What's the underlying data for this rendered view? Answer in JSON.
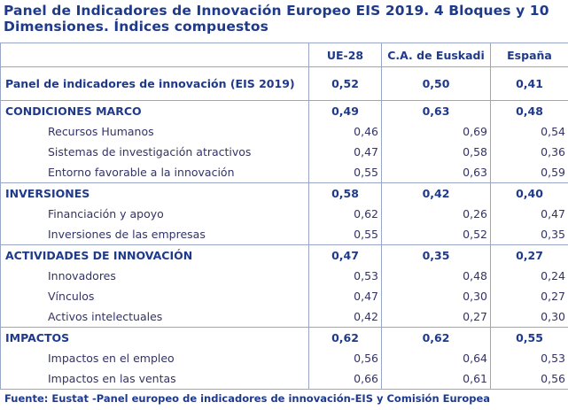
{
  "title": {
    "line1": "Panel de Indicadores de Innovación Europeo EIS 2019. 4 Bloques y 10",
    "line2": "Dimensiones. Índices compuestos"
  },
  "table": {
    "columns": [
      "",
      "UE-28",
      "C.A. de Euskadi",
      "España"
    ],
    "panel_row": {
      "label": "Panel de indicadores de innovación (EIS 2019)",
      "values": [
        "0,52",
        "0,50",
        "0,41"
      ]
    },
    "sections": [
      {
        "label": "CONDICIONES MARCO",
        "values": [
          "0,49",
          "0,63",
          "0,48"
        ],
        "rows": [
          {
            "label": "Recursos Humanos",
            "values": [
              "0,46",
              "0,69",
              "0,54"
            ]
          },
          {
            "label": "Sistemas de investigación atractivos",
            "values": [
              "0,47",
              "0,58",
              "0,36"
            ]
          },
          {
            "label": "Entorno favorable a la innovación",
            "values": [
              "0,55",
              "0,63",
              "0,59"
            ]
          }
        ]
      },
      {
        "label": "INVERSIONES",
        "values": [
          "0,58",
          "0,42",
          "0,40"
        ],
        "rows": [
          {
            "label": "Financiación y apoyo",
            "values": [
              "0,62",
              "0,26",
              "0,47"
            ]
          },
          {
            "label": "Inversiones de las empresas",
            "values": [
              "0,55",
              "0,52",
              "0,35"
            ]
          }
        ]
      },
      {
        "label": "ACTIVIDADES DE INNOVACIÓN",
        "values": [
          "0,47",
          "0,35",
          "0,27"
        ],
        "rows": [
          {
            "label": "Innovadores",
            "values": [
              "0,53",
              "0,48",
              "0,24"
            ]
          },
          {
            "label": "Vínculos",
            "values": [
              "0,47",
              "0,30",
              "0,27"
            ]
          },
          {
            "label": "Activos intelectuales",
            "values": [
              "0,42",
              "0,27",
              "0,30"
            ]
          }
        ]
      },
      {
        "label": "IMPACTOS",
        "values": [
          "0,62",
          "0,62",
          "0,55"
        ],
        "rows": [
          {
            "label": "Impactos en el empleo",
            "values": [
              "0,56",
              "0,64",
              "0,53"
            ]
          },
          {
            "label": "Impactos en las ventas",
            "values": [
              "0,66",
              "0,61",
              "0,56"
            ]
          }
        ]
      }
    ]
  },
  "source": "Fuente: Eustat -Panel europeo de indicadores de innovación-EIS y Comisión Europea"
}
